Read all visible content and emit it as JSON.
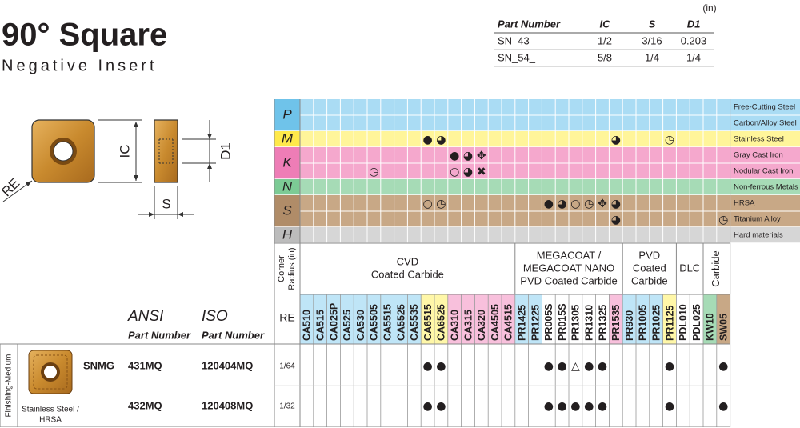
{
  "header": {
    "title": "90° Square",
    "subtitle": "Negative Insert"
  },
  "dimensions": {
    "unit": "(in)",
    "columns": [
      "Part Number",
      "IC",
      "S",
      "D1"
    ],
    "rows": [
      [
        "SN_43_",
        "1/2",
        "3/16",
        "0.203"
      ],
      [
        "SN_54_",
        "5/8",
        "1/4",
        "1/4"
      ]
    ]
  },
  "diagram": {
    "re": "RE",
    "ic": "IC",
    "d1": "D1",
    "s": "S"
  },
  "materials": [
    {
      "code": "P",
      "rows": [
        {
          "label": "Free-Cutting Steel",
          "cells": [
            null,
            null,
            null,
            null,
            null,
            null,
            null,
            null,
            null,
            null,
            null,
            null,
            null,
            null,
            null,
            null,
            null,
            null,
            null,
            null,
            null,
            null,
            null,
            null,
            null,
            null,
            null,
            null,
            null,
            null,
            null,
            null
          ]
        },
        {
          "label": "Carbon/Alloy Steel",
          "cells": [
            null,
            null,
            null,
            null,
            null,
            null,
            null,
            null,
            null,
            null,
            null,
            null,
            null,
            null,
            null,
            null,
            null,
            null,
            null,
            null,
            null,
            null,
            null,
            null,
            null,
            null,
            null,
            null,
            null,
            null,
            null,
            null
          ]
        }
      ]
    },
    {
      "code": "M",
      "rows": [
        {
          "label": "Stainless Steel",
          "cells": [
            null,
            null,
            null,
            null,
            null,
            null,
            null,
            null,
            null,
            "●",
            "◕",
            null,
            null,
            null,
            null,
            null,
            null,
            null,
            null,
            null,
            null,
            null,
            null,
            "◕",
            null,
            null,
            null,
            "◷",
            null,
            null,
            null,
            null
          ]
        }
      ]
    },
    {
      "code": "K",
      "rows": [
        {
          "label": "Gray Cast Iron",
          "cells": [
            null,
            null,
            null,
            null,
            null,
            null,
            null,
            null,
            null,
            null,
            null,
            "●",
            "◕",
            "✥",
            null,
            null,
            null,
            null,
            null,
            null,
            null,
            null,
            null,
            null,
            null,
            null,
            null,
            null,
            null,
            null,
            null,
            null
          ]
        },
        {
          "label": "Nodular Cast Iron",
          "cells": [
            null,
            null,
            null,
            null,
            null,
            "◷",
            null,
            null,
            null,
            null,
            null,
            "○",
            "◕",
            "✖",
            null,
            null,
            null,
            null,
            null,
            null,
            null,
            null,
            null,
            null,
            null,
            null,
            null,
            null,
            null,
            null,
            null,
            null
          ]
        }
      ]
    },
    {
      "code": "N",
      "rows": [
        {
          "label": "Non-ferrous Metals",
          "cells": [
            null,
            null,
            null,
            null,
            null,
            null,
            null,
            null,
            null,
            null,
            null,
            null,
            null,
            null,
            null,
            null,
            null,
            null,
            null,
            null,
            null,
            null,
            null,
            null,
            null,
            null,
            null,
            null,
            null,
            null,
            null,
            null
          ]
        }
      ]
    },
    {
      "code": "S",
      "rows": [
        {
          "label": "HRSA",
          "cells": [
            null,
            null,
            null,
            null,
            null,
            null,
            null,
            null,
            null,
            "○",
            "◷",
            null,
            null,
            null,
            null,
            null,
            null,
            null,
            "●",
            "◕",
            "○",
            "◷",
            "✥",
            "◕",
            null,
            null,
            null,
            null,
            null,
            null,
            null,
            null
          ]
        },
        {
          "label": "Titanium Alloy",
          "cells": [
            null,
            null,
            null,
            null,
            null,
            null,
            null,
            null,
            null,
            null,
            null,
            null,
            null,
            null,
            null,
            null,
            null,
            null,
            null,
            null,
            null,
            null,
            null,
            "◕",
            null,
            null,
            null,
            null,
            null,
            null,
            null,
            "◷"
          ]
        }
      ]
    },
    {
      "code": "H",
      "rows": [
        {
          "label": "Hard materials",
          "cells": [
            null,
            null,
            null,
            null,
            null,
            null,
            null,
            null,
            null,
            null,
            null,
            null,
            null,
            null,
            null,
            null,
            null,
            null,
            null,
            null,
            null,
            null,
            null,
            null,
            null,
            null,
            null,
            null,
            null,
            null,
            null,
            null
          ]
        }
      ]
    }
  ],
  "grade_groups": [
    {
      "label": [
        "CVD",
        "Coated Carbide"
      ],
      "grades": [
        "CA510",
        "CA515",
        "CA025P",
        "CA525",
        "CA530",
        "CA5505",
        "CA5515",
        "CA5525",
        "CA5535",
        "CA6515",
        "CA6525",
        "CA310",
        "CA315",
        "CA320",
        "CA4505",
        "CA4515"
      ]
    },
    {
      "label": [
        "MEGACOAT /",
        "MEGACOAT NANO",
        "PVD Coated Carbide"
      ],
      "grades": [
        "PR1425",
        "PR1225",
        "PR005S",
        "PR015S",
        "PR1305",
        "PR1310",
        "PR1325",
        "PR1535"
      ]
    },
    {
      "label": [
        "PVD",
        "Coated",
        "Carbide"
      ],
      "grades": [
        "PR930",
        "PR1005",
        "PR1025",
        "PR1125"
      ]
    },
    {
      "label": [
        "DLC"
      ],
      "grades": [
        "PDL010",
        "PDL025"
      ]
    },
    {
      "label": [
        "Carbide"
      ],
      "grades": [
        "KW10",
        "SW05"
      ]
    }
  ],
  "column_headers": {
    "corner_radius": [
      "Corner",
      "Radius (in)"
    ],
    "re": "RE",
    "ansi": "ANSI",
    "ansi_sub": "Part Number",
    "iso": "ISO",
    "iso_sub": "Part Number"
  },
  "products": {
    "application": "Finishing-Medium",
    "series": "SNMG",
    "workpiece": [
      "Stainless Steel /",
      "HRSA"
    ],
    "rows": [
      {
        "ansi": "431MQ",
        "iso": "120404MQ",
        "re": "1/64",
        "cells": [
          null,
          null,
          null,
          null,
          null,
          null,
          null,
          null,
          null,
          "●",
          "●",
          null,
          null,
          null,
          null,
          null,
          null,
          null,
          "●",
          "●",
          "△",
          "●",
          "●",
          null,
          null,
          null,
          null,
          "●",
          null,
          null,
          null,
          "●"
        ]
      },
      {
        "ansi": "432MQ",
        "iso": "120408MQ",
        "re": "1/32",
        "cells": [
          null,
          null,
          null,
          null,
          null,
          null,
          null,
          null,
          null,
          "●",
          "●",
          null,
          null,
          null,
          null,
          null,
          null,
          null,
          "●",
          "●",
          "●",
          "●",
          "●",
          null,
          null,
          null,
          null,
          "●",
          null,
          null,
          null,
          "●"
        ]
      }
    ]
  }
}
